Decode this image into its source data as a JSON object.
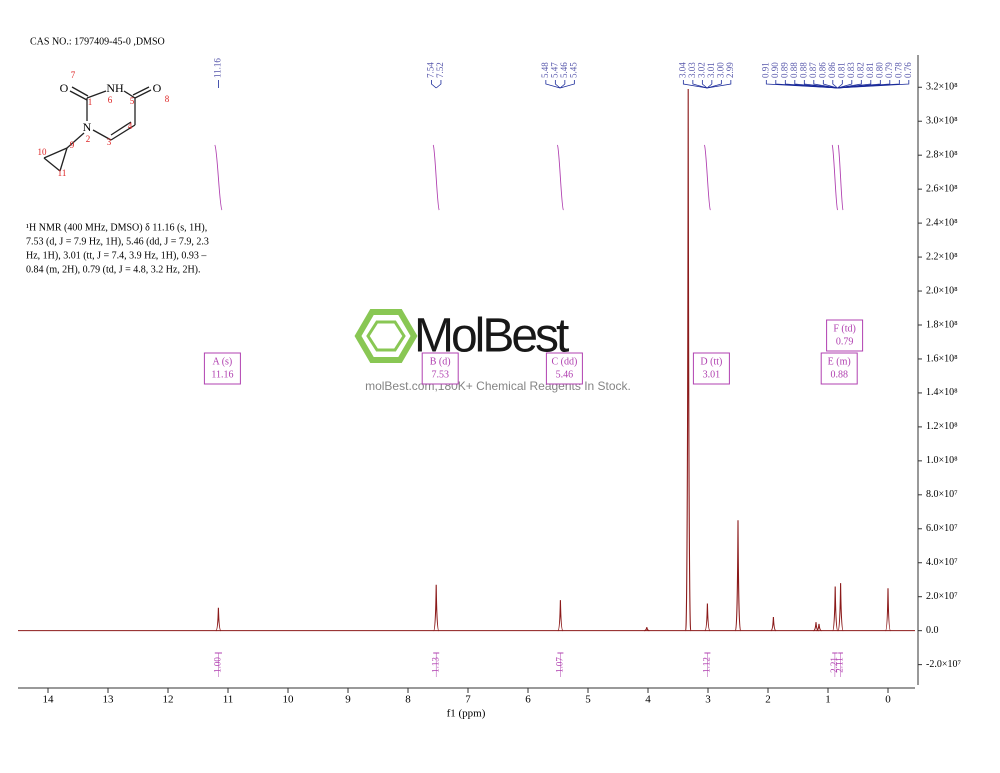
{
  "cas": "CAS NO.: 1797409-45-0 ,DMSO",
  "nmr_text": [
    "¹H NMR (400 MHz, DMSO) δ 11.16 (s, 1H),",
    "7.53 (d, J = 7.9 Hz, 1H), 5.46 (dd, J = 7.9, 2.3",
    "Hz, 1H), 3.01 (tt, J = 7.4, 3.9 Hz, 1H), 0.93 –",
    "0.84 (m, 2H), 0.79 (td, J = 4.8, 3.2 Hz, 2H)."
  ],
  "structure": {
    "labels": [
      "O",
      "7",
      "1",
      "NH",
      "6",
      "5",
      "O",
      "8",
      "4",
      "3",
      "N",
      "2",
      "9",
      "10",
      "11"
    ]
  },
  "watermark": {
    "brand": "MolBest",
    "tagline": "molBest.com,180K+ Chemical Reagents In Stock."
  },
  "chart_data": {
    "type": "stem",
    "x": [
      11.16,
      7.53,
      5.46,
      4.02,
      3.33,
      3.01,
      2.5,
      1.91,
      1.2,
      1.15,
      0.88,
      0.79,
      0.0
    ],
    "values": [
      13500000,
      27000000,
      18000000,
      2000000,
      319000000,
      16000000,
      65000000,
      8000000,
      5000000,
      4000000,
      26000000,
      28000000,
      25000000
    ],
    "color": "#8b1a1a",
    "xlim": [
      14.5,
      -0.45
    ],
    "xticks": [
      14,
      13,
      12,
      11,
      10,
      9,
      8,
      7,
      6,
      5,
      4,
      3,
      2,
      1,
      0
    ],
    "ylim": [
      -32000000,
      339000000
    ],
    "yticks": [
      {
        "value": -20000000,
        "label": "-2.0×10⁷"
      },
      {
        "value": 0,
        "label": "0.0"
      },
      {
        "value": 20000000,
        "label": "2.0×10⁷"
      },
      {
        "value": 40000000,
        "label": "4.0×10⁷"
      },
      {
        "value": 60000000,
        "label": "6.0×10⁷"
      },
      {
        "value": 80000000,
        "label": "8.0×10⁷"
      },
      {
        "value": 100000000,
        "label": "1.0×10⁸"
      },
      {
        "value": 120000000,
        "label": "1.2×10⁸"
      },
      {
        "value": 140000000,
        "label": "1.4×10⁸"
      },
      {
        "value": 160000000,
        "label": "1.6×10⁸"
      },
      {
        "value": 180000000,
        "label": "1.8×10⁸"
      },
      {
        "value": 200000000,
        "label": "2.0×10⁸"
      },
      {
        "value": 220000000,
        "label": "2.2×10⁸"
      },
      {
        "value": 240000000,
        "label": "2.4×10⁸"
      },
      {
        "value": 260000000,
        "label": "2.6×10⁸"
      },
      {
        "value": 280000000,
        "label": "2.8×10⁸"
      },
      {
        "value": 300000000,
        "label": "3.0×10⁸"
      },
      {
        "value": 320000000,
        "label": "3.2×10⁸"
      }
    ],
    "x_label": "f1 (ppm)",
    "peak_labels": [
      [
        "11.16"
      ],
      [
        "7.54",
        "7.52"
      ],
      [
        "5.48",
        "5.47",
        "5.46",
        "5.45"
      ],
      [
        "3.04",
        "3.03",
        "3.02",
        "3.01",
        "3.00",
        "2.99"
      ],
      [
        "0.91",
        "0.90",
        "0.89",
        "0.88",
        "0.88",
        "0.87",
        "0.86",
        "0.86",
        "0.81",
        "0.83",
        "0.82",
        "0.81",
        "0.80",
        "0.79",
        "0.78",
        "0.76"
      ]
    ],
    "multiplets": [
      {
        "name": "A (s)",
        "shift": "11.16"
      },
      {
        "name": "B (d)",
        "shift": "7.53"
      },
      {
        "name": "C (dd)",
        "shift": "5.46"
      },
      {
        "name": "D (tt)",
        "shift": "3.01"
      },
      {
        "name": "E (m)",
        "shift": "0.88"
      },
      {
        "name": "F (td)",
        "shift": "0.79"
      }
    ],
    "integrals": [
      {
        "range": [
          11.22,
          11.1
        ],
        "label": "1.00"
      },
      {
        "range": [
          7.58,
          7.48
        ],
        "label": "1.13"
      },
      {
        "range": [
          5.51,
          5.41
        ],
        "label": "1.07"
      },
      {
        "range": [
          3.06,
          2.96
        ],
        "label": "1.12"
      },
      {
        "range": [
          0.93,
          0.84
        ],
        "label": "2.21"
      },
      {
        "range": [
          0.83,
          0.75
        ],
        "label": "2.11"
      }
    ]
  }
}
